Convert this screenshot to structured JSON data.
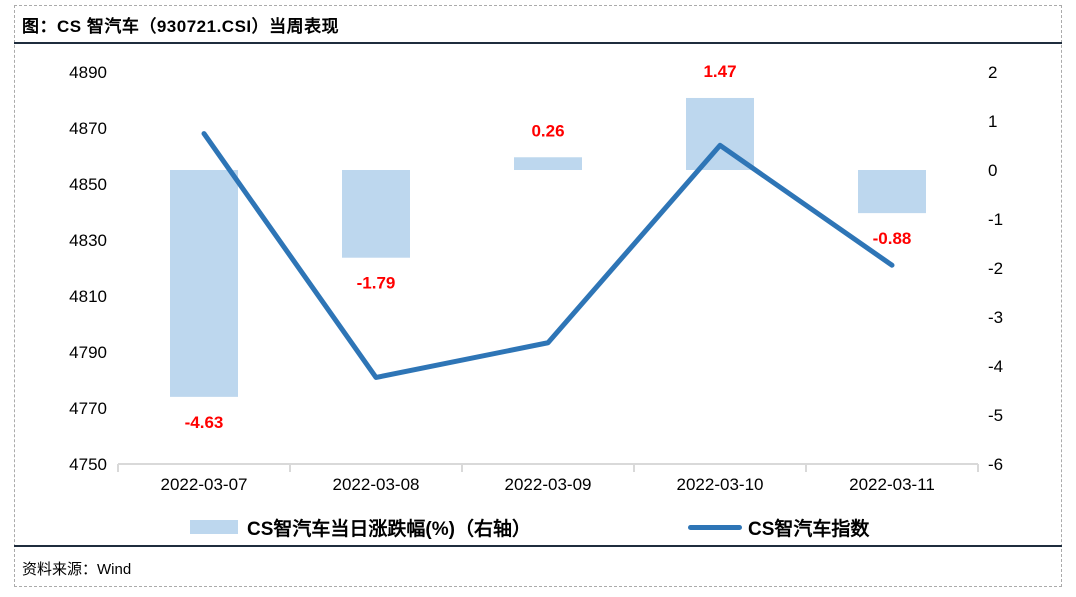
{
  "figure": {
    "title": "图：CS 智汽车（930721.CSI）当周表现",
    "source_label": "资料来源：",
    "source_value": "Wind"
  },
  "colors": {
    "bar_fill": "#BDD7EE",
    "line_stroke": "#2E75B6",
    "data_label_red": "#FF0000",
    "axis_gray": "#D9D9D9",
    "rule_dark": "#1F2D3D",
    "frame_dashed_gray": "#ABABAB",
    "text_black": "#000000"
  },
  "chart_data": {
    "type": "combo",
    "title": "CS 智汽车（930721.CSI）当周表现",
    "categories": [
      "2022-03-07",
      "2022-03-08",
      "2022-03-09",
      "2022-03-10",
      "2022-03-11"
    ],
    "series": [
      {
        "name": "CS智汽车当日涨跌幅(%)（右轴）",
        "type": "bar",
        "axis": "right",
        "values": [
          -4.63,
          -1.79,
          0.26,
          1.47,
          -0.88
        ],
        "labels": [
          "-4.63",
          "-1.79",
          "0.26",
          "1.47",
          "-0.88"
        ],
        "color": "#BDD7EE",
        "label_color": "#FF0000"
      },
      {
        "name": "CS智汽车指数",
        "type": "line",
        "axis": "left",
        "values": [
          4868.0,
          4780.9,
          4793.3,
          4863.8,
          4821.0
        ],
        "color": "#2E75B6"
      }
    ],
    "left_axis": {
      "min": 4750,
      "max": 4890,
      "step": 20,
      "ticks": [
        "4890",
        "4870",
        "4850",
        "4830",
        "4810",
        "4790",
        "4770",
        "4750"
      ]
    },
    "right_axis": {
      "min": -6,
      "max": 2,
      "step": 1,
      "ticks": [
        "2",
        "1",
        "0",
        "-1",
        "-2",
        "-3",
        "-4",
        "-5",
        "-6"
      ]
    },
    "grid": false,
    "legend_position": "bottom",
    "legend": [
      {
        "label": "CS智汽车当日涨跌幅(%)（右轴）",
        "swatch": "bar",
        "color": "#BDD7EE"
      },
      {
        "label": "CS智汽车指数",
        "swatch": "line",
        "color": "#2E75B6"
      }
    ]
  }
}
